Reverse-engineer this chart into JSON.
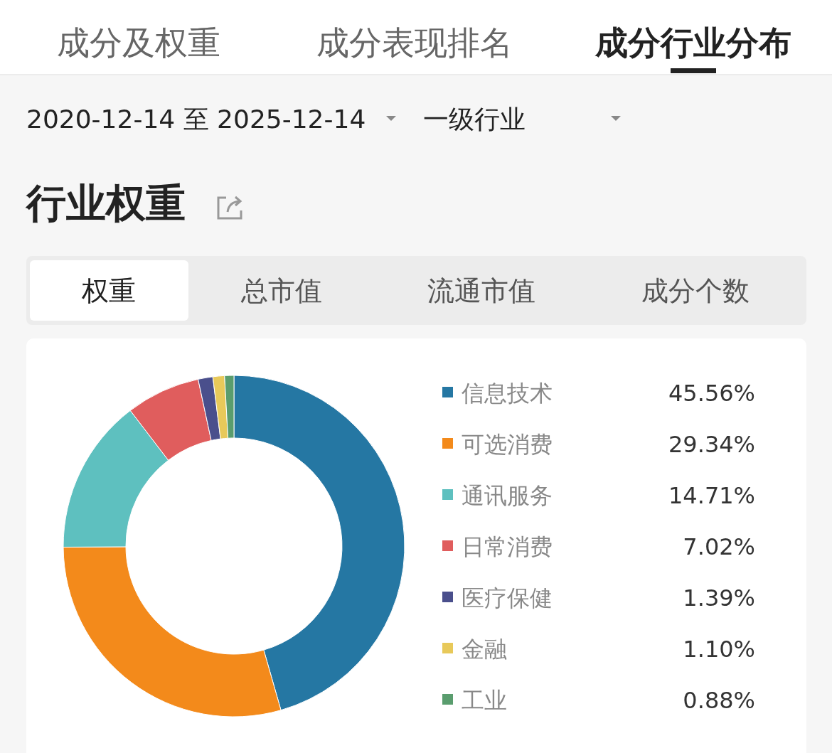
{
  "chart_data": {
    "type": "donut",
    "title": "行业权重",
    "annotations": [
      "成分及权重",
      "成分表现排名",
      "成分行业分布",
      "2020-12-14 至 2025-12-14",
      "一级行业",
      "权重",
      "总市值",
      "流通市值",
      "成分个数"
    ],
    "categories": [
      "信息技术",
      "可选消费",
      "通讯服务",
      "日常消费",
      "医疗保健",
      "金融",
      "工业"
    ],
    "values": [
      45.56,
      29.34,
      14.71,
      7.02,
      1.39,
      1.1,
      0.88
    ],
    "value_labels": [
      "45.56%",
      "29.34%",
      "14.71%",
      "7.02%",
      "1.39%",
      "1.10%",
      "0.88%"
    ],
    "colors": [
      "#2577a3",
      "#f38a1b",
      "#5ec0bf",
      "#e05d5d",
      "#4a4f8c",
      "#e8c95a",
      "#5a9d6e"
    ],
    "legend": "right"
  }
}
